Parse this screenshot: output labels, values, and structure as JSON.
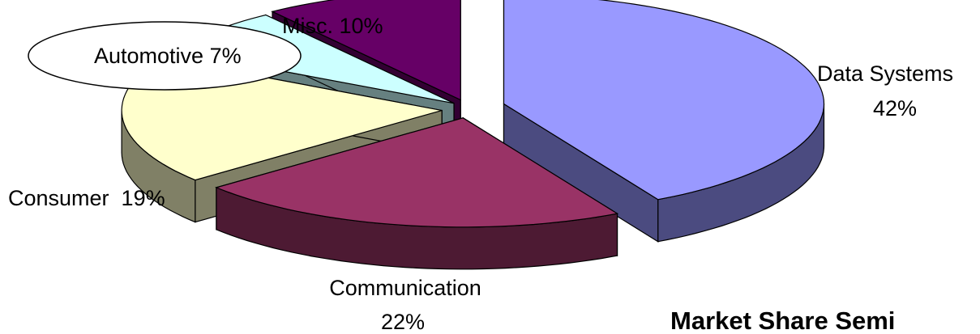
{
  "chart_data": {
    "type": "pie",
    "title": "Market Share Semi",
    "style": "3d-exploded",
    "slices": [
      {
        "category": "Data Systems",
        "percent_label": "42%",
        "value": 42,
        "top_color": "#9999ff",
        "side_color": "#4b4b80"
      },
      {
        "category": "Communication",
        "percent_label": "22%",
        "value": 22,
        "top_color": "#993366",
        "side_color": "#4d1a33"
      },
      {
        "category": "Consumer",
        "percent_label": "19%",
        "value": 19,
        "top_color": "#ffffcc",
        "side_color": "#808066"
      },
      {
        "category": "Automotive",
        "percent_label": "7%",
        "value": 7,
        "top_color": "#ccffff",
        "side_color": "#668080"
      },
      {
        "category": "Misc.",
        "percent_label": "10%",
        "value": 10,
        "top_color": "#660066",
        "side_color": "#330033"
      }
    ]
  },
  "labels": {
    "data_systems": {
      "name": "Data Systems",
      "pct": "42%"
    },
    "communication": {
      "name": "Communication",
      "pct": "22%"
    },
    "consumer": {
      "text": "Consumer  19%"
    },
    "automotive": {
      "text": "Automotive 7%"
    },
    "misc": {
      "text": "Misc. 10%"
    }
  }
}
